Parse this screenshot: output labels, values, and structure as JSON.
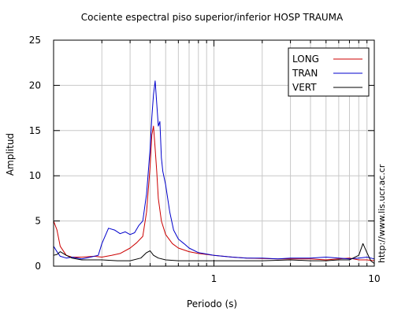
{
  "chart_data": {
    "type": "line",
    "title": "Cociente espectral piso superior/inferior  HOSP TRAUMA",
    "xlabel": "Periodo (s)",
    "ylabel": "Amplitud",
    "x_scale": "log",
    "xlim": [
      0.1,
      10
    ],
    "ylim": [
      0,
      25
    ],
    "x_ticks": [
      1,
      10
    ],
    "x_tick_labels": [
      "1",
      "10"
    ],
    "y_ticks": [
      0,
      5,
      10,
      15,
      20,
      25
    ],
    "y_tick_labels": [
      "0",
      "5",
      "10",
      "15",
      "20",
      "25"
    ],
    "grid": true,
    "legend_position": "top-right",
    "series": [
      {
        "name": "LONG",
        "color": "#cc0000",
        "x": [
          0.1,
          0.105,
          0.11,
          0.12,
          0.13,
          0.15,
          0.18,
          0.2,
          0.23,
          0.26,
          0.3,
          0.33,
          0.36,
          0.38,
          0.4,
          0.41,
          0.42,
          0.43,
          0.44,
          0.45,
          0.47,
          0.5,
          0.55,
          0.6,
          0.7,
          0.8,
          1.0,
          1.3,
          1.6,
          2.0,
          2.5,
          3.0,
          4.0,
          5.0,
          6.0,
          7.0,
          8.0,
          9.0,
          10.0
        ],
        "y": [
          5.0,
          4.0,
          2.2,
          1.2,
          1.0,
          1.0,
          1.1,
          1.0,
          1.2,
          1.4,
          2.0,
          2.6,
          3.3,
          6.0,
          11.0,
          14.5,
          15.5,
          13.0,
          10.5,
          7.5,
          5.0,
          3.5,
          2.5,
          2.0,
          1.6,
          1.4,
          1.2,
          1.0,
          0.9,
          0.85,
          0.8,
          0.8,
          0.8,
          0.7,
          0.8,
          0.9,
          0.7,
          0.7,
          0.6
        ]
      },
      {
        "name": "TRAN",
        "color": "#0000cc",
        "x": [
          0.1,
          0.105,
          0.11,
          0.12,
          0.13,
          0.15,
          0.17,
          0.19,
          0.2,
          0.22,
          0.24,
          0.26,
          0.28,
          0.3,
          0.32,
          0.34,
          0.36,
          0.38,
          0.4,
          0.41,
          0.42,
          0.43,
          0.44,
          0.45,
          0.46,
          0.47,
          0.48,
          0.5,
          0.53,
          0.56,
          0.6,
          0.65,
          0.7,
          0.8,
          1.0,
          1.3,
          1.6,
          2.0,
          2.5,
          3.0,
          4.0,
          5.0,
          6.0,
          7.0,
          8.0,
          9.0,
          10.0
        ],
        "y": [
          2.2,
          1.6,
          1.1,
          0.9,
          1.0,
          0.8,
          1.0,
          1.2,
          2.5,
          4.2,
          4.0,
          3.6,
          3.8,
          3.5,
          3.7,
          4.5,
          5.0,
          8.0,
          13.0,
          16.5,
          19.0,
          20.5,
          18.0,
          15.5,
          16.0,
          12.0,
          10.5,
          9.0,
          6.0,
          4.0,
          3.0,
          2.5,
          2.0,
          1.5,
          1.2,
          1.0,
          0.9,
          0.9,
          0.8,
          0.9,
          0.9,
          1.0,
          0.9,
          0.8,
          0.9,
          1.0,
          0.8
        ]
      },
      {
        "name": "VERT",
        "color": "#000000",
        "x": [
          0.1,
          0.105,
          0.11,
          0.12,
          0.13,
          0.15,
          0.2,
          0.25,
          0.3,
          0.35,
          0.38,
          0.4,
          0.42,
          0.45,
          0.5,
          0.6,
          0.8,
          1.0,
          1.5,
          2.0,
          3.0,
          4.0,
          5.0,
          6.0,
          7.0,
          8.0,
          8.5,
          9.0,
          9.5,
          10.0
        ],
        "y": [
          1.2,
          1.3,
          1.6,
          1.2,
          0.9,
          0.7,
          0.7,
          0.6,
          0.6,
          0.9,
          1.5,
          1.7,
          1.2,
          0.9,
          0.7,
          0.6,
          0.6,
          0.6,
          0.6,
          0.6,
          0.7,
          0.6,
          0.6,
          0.7,
          0.7,
          1.2,
          2.5,
          1.5,
          0.6,
          0.3
        ]
      }
    ]
  },
  "watermark": "http://www.lis.ucr.ac.cr"
}
